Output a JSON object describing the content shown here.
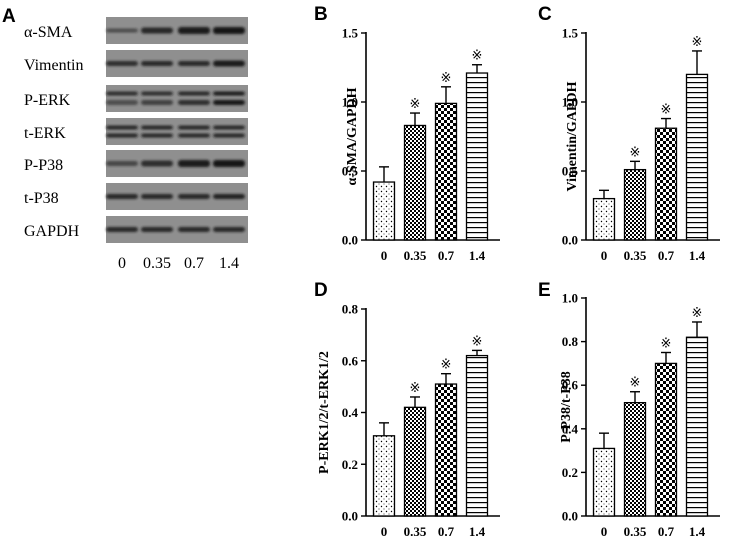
{
  "western_blot": {
    "panel": "A",
    "rows": [
      "α-SMA",
      "Vimentin",
      "P-ERK",
      "t-ERK",
      "P-P38",
      "t-P38",
      "GAPDH"
    ],
    "lanes": [
      "0",
      "0.35",
      "0.7",
      "1.4"
    ]
  },
  "colors": {
    "ink": "#000000",
    "bar_fill": "#ffffff",
    "blot_bg": "#8f8f8f",
    "band": "#141414"
  },
  "chart_data": [
    {
      "panel": "B",
      "type": "bar",
      "categories": [
        "0",
        "0.35",
        "0.7",
        "1.4"
      ],
      "values": [
        0.42,
        0.83,
        0.99,
        1.21
      ],
      "errors": [
        0.11,
        0.09,
        0.12,
        0.06
      ],
      "significance": [
        "",
        "※",
        "※",
        "※"
      ],
      "patterns": [
        "dots",
        "checker-small",
        "checker-large",
        "horizontal-lines"
      ],
      "ylabel": "α-SMA/GAPDH",
      "ylim": [
        0,
        1.5
      ],
      "yticks": [
        "0.0",
        "0.5",
        "1.0",
        "1.5"
      ]
    },
    {
      "panel": "C",
      "type": "bar",
      "categories": [
        "0",
        "0.35",
        "0.7",
        "1.4"
      ],
      "values": [
        0.3,
        0.51,
        0.81,
        1.2
      ],
      "errors": [
        0.06,
        0.06,
        0.07,
        0.17
      ],
      "significance": [
        "",
        "※",
        "※",
        "※"
      ],
      "patterns": [
        "dots",
        "checker-small",
        "checker-large",
        "horizontal-lines"
      ],
      "ylabel": "Vimentin/GAPDH",
      "ylim": [
        0,
        1.5
      ],
      "yticks": [
        "0.0",
        "0.5",
        "1.0",
        "1.5"
      ]
    },
    {
      "panel": "D",
      "type": "bar",
      "categories": [
        "0",
        "0.35",
        "0.7",
        "1.4"
      ],
      "values": [
        0.31,
        0.42,
        0.51,
        0.62
      ],
      "errors": [
        0.05,
        0.04,
        0.04,
        0.02
      ],
      "significance": [
        "",
        "※",
        "※",
        "※"
      ],
      "patterns": [
        "dots",
        "checker-small",
        "checker-large",
        "horizontal-lines"
      ],
      "ylabel": "P-ERK1/2/t-ERK1/2",
      "ylim": [
        0,
        0.8
      ],
      "yticks": [
        "0.0",
        "0.2",
        "0.4",
        "0.6",
        "0.8"
      ]
    },
    {
      "panel": "E",
      "type": "bar",
      "categories": [
        "0",
        "0.35",
        "0.7",
        "1.4"
      ],
      "values": [
        0.31,
        0.52,
        0.7,
        0.82
      ],
      "errors": [
        0.07,
        0.05,
        0.05,
        0.07
      ],
      "significance": [
        "",
        "※",
        "※",
        "※"
      ],
      "patterns": [
        "dots",
        "checker-small",
        "checker-large",
        "horizontal-lines"
      ],
      "ylabel": "P-P38/t-P38",
      "ylim": [
        0,
        1.0
      ],
      "yticks": [
        "0.0",
        "0.2",
        "0.4",
        "0.6",
        "0.8",
        "1.0"
      ]
    }
  ]
}
